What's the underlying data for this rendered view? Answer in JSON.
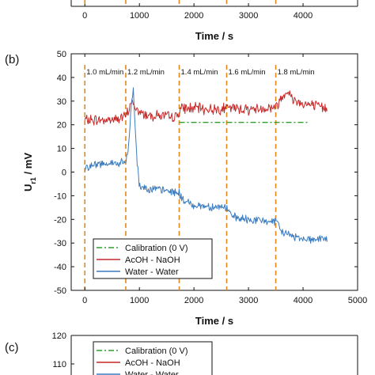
{
  "chart_data": [
    {
      "type": "line",
      "panel_label": "",
      "xlabel": "Time / s",
      "ylabel": "",
      "xlim": [
        -250,
        5000
      ],
      "x_ticks": [
        0,
        1000,
        2000,
        3000,
        4000
      ],
      "markers": [
        0,
        750,
        1730,
        2600,
        3500
      ]
    },
    {
      "type": "line",
      "panel_label": "(b)",
      "xlabel": "Time / s",
      "ylabel": "U",
      "ylabel_sub": "r1",
      "ylabel_unit": " / mV",
      "xlim": [
        -250,
        5000
      ],
      "ylim": [
        -50,
        50
      ],
      "x_ticks": [
        0,
        1000,
        2000,
        3000,
        4000,
        5000
      ],
      "y_ticks": [
        -50,
        -40,
        -30,
        -20,
        -10,
        0,
        10,
        20,
        30,
        40,
        50
      ],
      "grid": false,
      "legend_placement": "bottom-left",
      "flow_rates": [
        {
          "t": 0,
          "label": "1.0 mL/min"
        },
        {
          "t": 750,
          "label": "1.2 mL/min"
        },
        {
          "t": 1730,
          "label": "1.4 mL/min"
        },
        {
          "t": 2600,
          "label": "1.6 mL/min"
        },
        {
          "t": 3500,
          "label": "1.8 mL/min"
        }
      ],
      "markers": [
        0,
        750,
        1730,
        2600,
        3500
      ],
      "series": [
        {
          "name": "Calibration (0 V)",
          "color": "#2ca02c",
          "style": "dashdot",
          "x": [
            1730,
            4100
          ],
          "y": [
            21,
            21
          ]
        },
        {
          "name": "AcOH - NaOH",
          "color": "#c62828",
          "style": "solid",
          "segments": [
            [
              0,
              22
            ],
            [
              200,
              22
            ],
            [
              400,
              22
            ],
            [
              600,
              22.5
            ],
            [
              750,
              23.5
            ],
            [
              800,
              26
            ],
            [
              850,
              30
            ],
            [
              900,
              28
            ],
            [
              1000,
              25
            ],
            [
              1200,
              24
            ],
            [
              1400,
              24
            ],
            [
              1600,
              23
            ],
            [
              1700,
              24
            ],
            [
              1730,
              26
            ],
            [
              1800,
              27
            ],
            [
              2000,
              27
            ],
            [
              2300,
              26.5
            ],
            [
              2600,
              27
            ],
            [
              2800,
              27
            ],
            [
              3000,
              26.5
            ],
            [
              3300,
              27
            ],
            [
              3500,
              27.5
            ],
            [
              3600,
              31
            ],
            [
              3700,
              35
            ],
            [
              3800,
              31
            ],
            [
              4000,
              29
            ],
            [
              4200,
              28
            ],
            [
              4450,
              27
            ]
          ]
        },
        {
          "name": "Water - Water",
          "color": "#3b7bbf",
          "style": "solid",
          "segments": [
            [
              0,
              2
            ],
            [
              200,
              3
            ],
            [
              400,
              4
            ],
            [
              600,
              3.5
            ],
            [
              700,
              4
            ],
            [
              750,
              4
            ],
            [
              800,
              10
            ],
            [
              850,
              28
            ],
            [
              890,
              35
            ],
            [
              920,
              20
            ],
            [
              960,
              4
            ],
            [
              1000,
              -6
            ],
            [
              1200,
              -7
            ],
            [
              1500,
              -8
            ],
            [
              1700,
              -8.5
            ],
            [
              1730,
              -9
            ],
            [
              1800,
              -12
            ],
            [
              2000,
              -14
            ],
            [
              2300,
              -14.5
            ],
            [
              2600,
              -15
            ],
            [
              2700,
              -19
            ],
            [
              2900,
              -20
            ],
            [
              3200,
              -20.5
            ],
            [
              3500,
              -21
            ],
            [
              3600,
              -25
            ],
            [
              3800,
              -27
            ],
            [
              4000,
              -28
            ],
            [
              4200,
              -28.5
            ],
            [
              4450,
              -28
            ]
          ]
        }
      ]
    },
    {
      "type": "line",
      "panel_label": "(c)",
      "xlabel": "",
      "ylabel": "",
      "y_ticks_visible": [
        120,
        110
      ],
      "legend_visible": [
        "Calibration (0 V)",
        "AcOH - NaOH",
        "Water - Water"
      ]
    }
  ],
  "legend_entries": [
    "Calibration (0 V)",
    "AcOH - NaOH",
    "Water - Water"
  ],
  "legend_colors": [
    "#2ca02c",
    "#c62828",
    "#3b7bbf"
  ],
  "marker_color": "#e08a1e"
}
